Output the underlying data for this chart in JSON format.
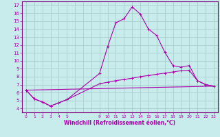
{
  "xlabel": "Windchill (Refroidissement éolien,°C)",
  "background_color": "#c8ecec",
  "grid_color": "#a0c8c8",
  "line_color": "#aa00aa",
  "spine_color": "#800080",
  "x_ticks": [
    0,
    1,
    2,
    3,
    4,
    5,
    9,
    10,
    11,
    12,
    13,
    14,
    15,
    16,
    17,
    18,
    19,
    20,
    21,
    22,
    23
  ],
  "x_tick_labels": [
    "0",
    "1",
    "2",
    "3",
    "4",
    "5",
    "9",
    "10",
    "11",
    "12",
    "13",
    "14",
    "15",
    "16",
    "17",
    "18",
    "19",
    "20",
    "21",
    "22",
    "23"
  ],
  "ylim": [
    3.5,
    17.5
  ],
  "xlim": [
    -0.5,
    23.5
  ],
  "yticks": [
    4,
    5,
    6,
    7,
    8,
    9,
    10,
    11,
    12,
    13,
    14,
    15,
    16,
    17
  ],
  "series1_x": [
    0,
    1,
    2,
    3,
    4,
    5,
    9,
    10,
    11,
    12,
    13,
    14,
    15,
    16,
    17,
    18,
    19,
    20,
    21,
    22,
    23
  ],
  "series1_y": [
    6.3,
    5.2,
    4.8,
    4.3,
    4.7,
    5.1,
    8.4,
    11.8,
    14.8,
    15.3,
    16.8,
    15.9,
    14.0,
    13.2,
    11.1,
    9.4,
    9.2,
    9.4,
    7.5,
    7.0,
    6.8
  ],
  "series2_x": [
    0,
    1,
    2,
    3,
    4,
    5,
    9,
    10,
    11,
    12,
    13,
    14,
    15,
    16,
    17,
    18,
    19,
    20,
    21,
    22,
    23
  ],
  "series2_y": [
    6.3,
    5.2,
    4.8,
    4.3,
    4.7,
    5.1,
    7.1,
    7.3,
    7.5,
    7.65,
    7.8,
    8.0,
    8.15,
    8.3,
    8.45,
    8.6,
    8.75,
    8.8,
    7.5,
    7.0,
    6.8
  ],
  "series3_x": [
    0,
    23
  ],
  "series3_y": [
    6.3,
    6.8
  ]
}
